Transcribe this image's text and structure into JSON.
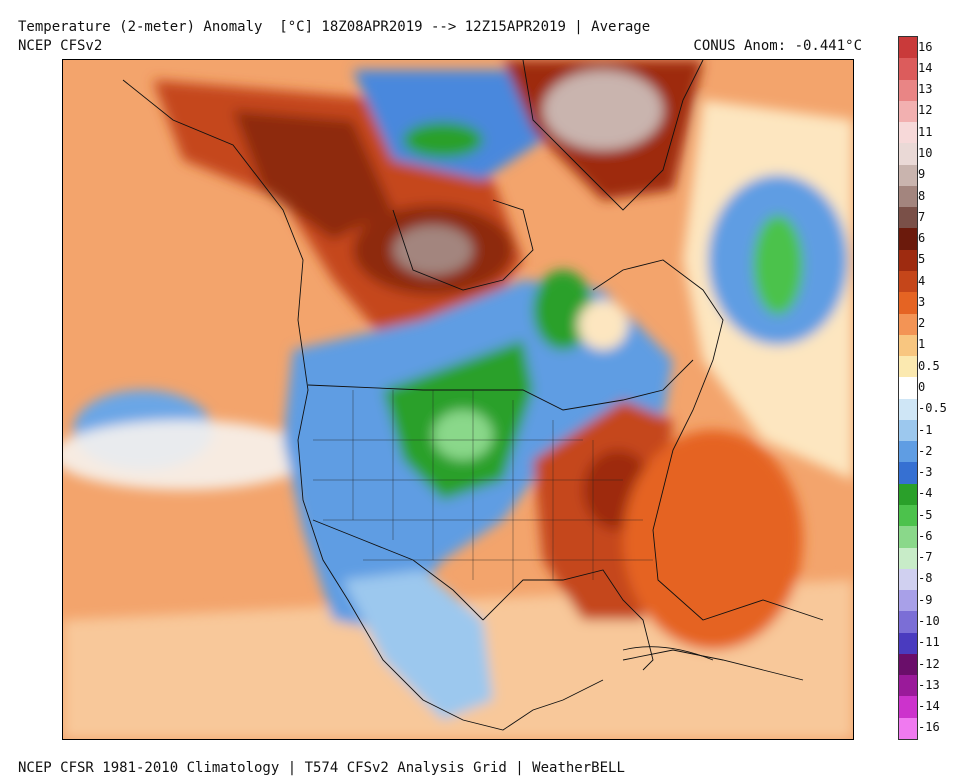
{
  "header": {
    "title": "Temperature (2-meter) Anomaly  [°C] 18Z08APR2019 --> 12Z15APR2019 | Average",
    "model": "NCEP CFSv2",
    "conus_anomaly": "CONUS Anom: -0.441°C"
  },
  "footer": "NCEP CFSR 1981-2010 Climatology | T574 CFSv2 Analysis Grid | WeatherBELL",
  "colorbar": {
    "labels": [
      "16",
      "14",
      "13",
      "12",
      "11",
      "10",
      "9",
      "8",
      "7",
      "6",
      "5",
      "4",
      "3",
      "2",
      "1",
      "0.5",
      "0",
      "-0.5",
      "-1",
      "-2",
      "-3",
      "-4",
      "-5",
      "-6",
      "-7",
      "-8",
      "-9",
      "-10",
      "-11",
      "-12",
      "-13",
      "-14",
      "-16"
    ],
    "colors": [
      "#c93a3a",
      "#dc5c5c",
      "#e98585",
      "#f2b0b0",
      "#f7d9d9",
      "#ead9d6",
      "#c9b4ae",
      "#a3857e",
      "#7a5048",
      "#6b1a0c",
      "#9e2b10",
      "#c5461a",
      "#e56423",
      "#f39455",
      "#f8c680",
      "#fbe9b0",
      "#ffffff",
      "#cfe6f6",
      "#9cc8ee",
      "#5f9de3",
      "#3670d2",
      "#2aa02a",
      "#4cc24c",
      "#8ad88a",
      "#c8ecc8",
      "#d0d0f0",
      "#a8a0e8",
      "#7b6ed6",
      "#4a3bbf",
      "#6a0e6a",
      "#9a1a9a",
      "#cc33cc",
      "#f07af0"
    ]
  }
}
